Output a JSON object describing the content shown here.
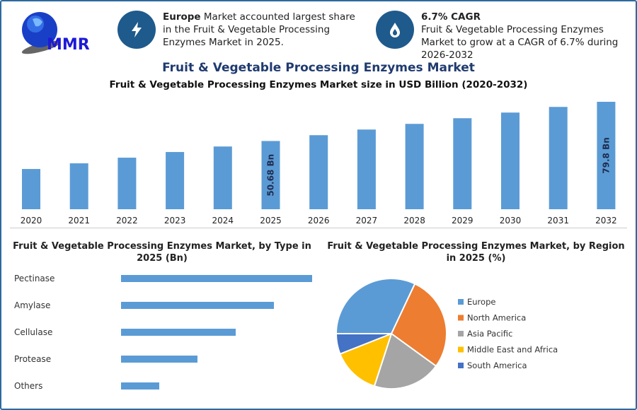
{
  "logo": {
    "text": "MMR"
  },
  "info1": {
    "bold": "Europe",
    "text": " Market accounted largest share in the Fruit & Vegetable Processing Enzymes Market in 2025.",
    "icon": "lightning-icon"
  },
  "info2": {
    "bold": "6.7% CAGR",
    "text": "Fruit & Vegetable Processing Enzymes Market to grow at a CAGR of 6.7% during 2026-2032",
    "icon": "drop-icon"
  },
  "chart_data": [
    {
      "type": "bar",
      "title": "Fruit & Vegetable Processing Enzymes Market",
      "subtitle": "Fruit & Vegetable Processing Enzymes Market size in USD Billion (2020-2032)",
      "categories": [
        "2020",
        "2021",
        "2022",
        "2023",
        "2024",
        "2025",
        "2026",
        "2027",
        "2028",
        "2029",
        "2030",
        "2031",
        "2032"
      ],
      "values": [
        29.9,
        34.1,
        38.3,
        42.5,
        46.6,
        50.68,
        55.0,
        59.2,
        63.4,
        67.6,
        71.8,
        76.0,
        79.8
      ],
      "data_labels": {
        "2025": "50.68 Bn",
        "2032": "79.8 Bn"
      },
      "color": "#5b9bd5",
      "ylim": [
        0,
        80
      ]
    },
    {
      "type": "bar",
      "orientation": "horizontal",
      "title": "Fruit & Vegetable Processing Enzymes Market, by Type in 2025 (Bn)",
      "categories": [
        "Pectinase",
        "Amylase",
        "Cellulase",
        "Protease",
        "Others"
      ],
      "values": [
        5,
        4,
        3,
        2,
        1
      ],
      "color": "#5b9bd5"
    },
    {
      "type": "pie",
      "title": "Fruit & Vegetable Processing Enzymes Market, by Region in 2025 (%)",
      "labels": [
        "Europe",
        "North America",
        "Asia Pacific",
        "Middle East and Africa",
        "South America"
      ],
      "values": [
        32,
        28,
        20,
        14,
        6
      ],
      "colors": [
        "#5b9bd5",
        "#ed7d31",
        "#a5a5a5",
        "#ffc000",
        "#4472c4"
      ],
      "legend": "right"
    }
  ]
}
